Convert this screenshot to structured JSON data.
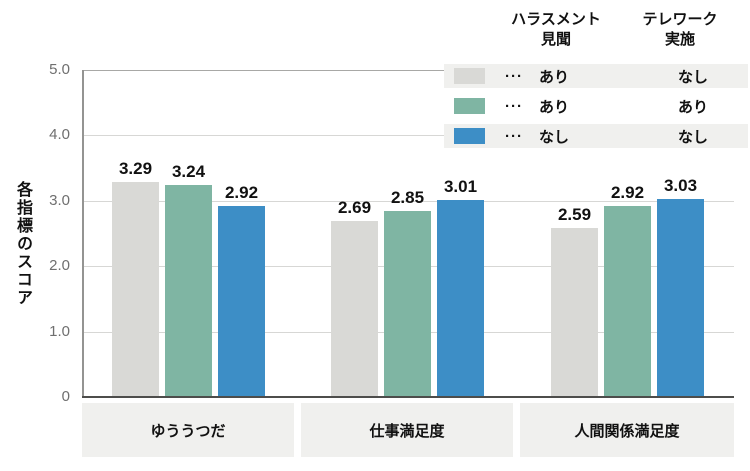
{
  "chart_data": {
    "type": "bar",
    "categories": [
      "ゆううつだ",
      "仕事満足度",
      "人間関係満足度"
    ],
    "series": [
      {
        "name": "ハラスメント見聞あり・テレワーク実施なし",
        "color": "#d9d9d6",
        "values": [
          3.29,
          2.69,
          2.59
        ]
      },
      {
        "name": "ハラスメント見聞あり・テレワーク実施あり",
        "color": "#7fb5a3",
        "values": [
          3.24,
          2.85,
          2.92
        ]
      },
      {
        "name": "ハラスメント見聞なし・テレワーク実施なし",
        "color": "#3d8ec6",
        "values": [
          2.92,
          3.01,
          3.03
        ]
      }
    ],
    "ylabel": "各指標のスコア",
    "ylim": [
      0,
      5
    ],
    "yticks": [
      "5.0",
      "4.0",
      "3.0",
      "2.0",
      "1.0",
      "0"
    ],
    "grid": "horizontal",
    "legend_position": "top-right",
    "value_label_format": "2-decimals"
  },
  "legend": {
    "headers": [
      "ハラスメント\n見聞",
      "テレワーク\n実施"
    ],
    "rows": [
      {
        "dots": "···",
        "col1": "あり",
        "col2": "なし"
      },
      {
        "dots": "···",
        "col1": "あり",
        "col2": "あり"
      },
      {
        "dots": "···",
        "col1": "なし",
        "col2": "なし"
      }
    ]
  },
  "colors": {
    "bar_gray": "#d9d9d6",
    "bar_green": "#7fb5a3",
    "bar_blue": "#3d8ec6",
    "stripe_bg": "#f0f0ee",
    "gridline": "#d7d7d5",
    "axis": "#4d4d4b"
  }
}
